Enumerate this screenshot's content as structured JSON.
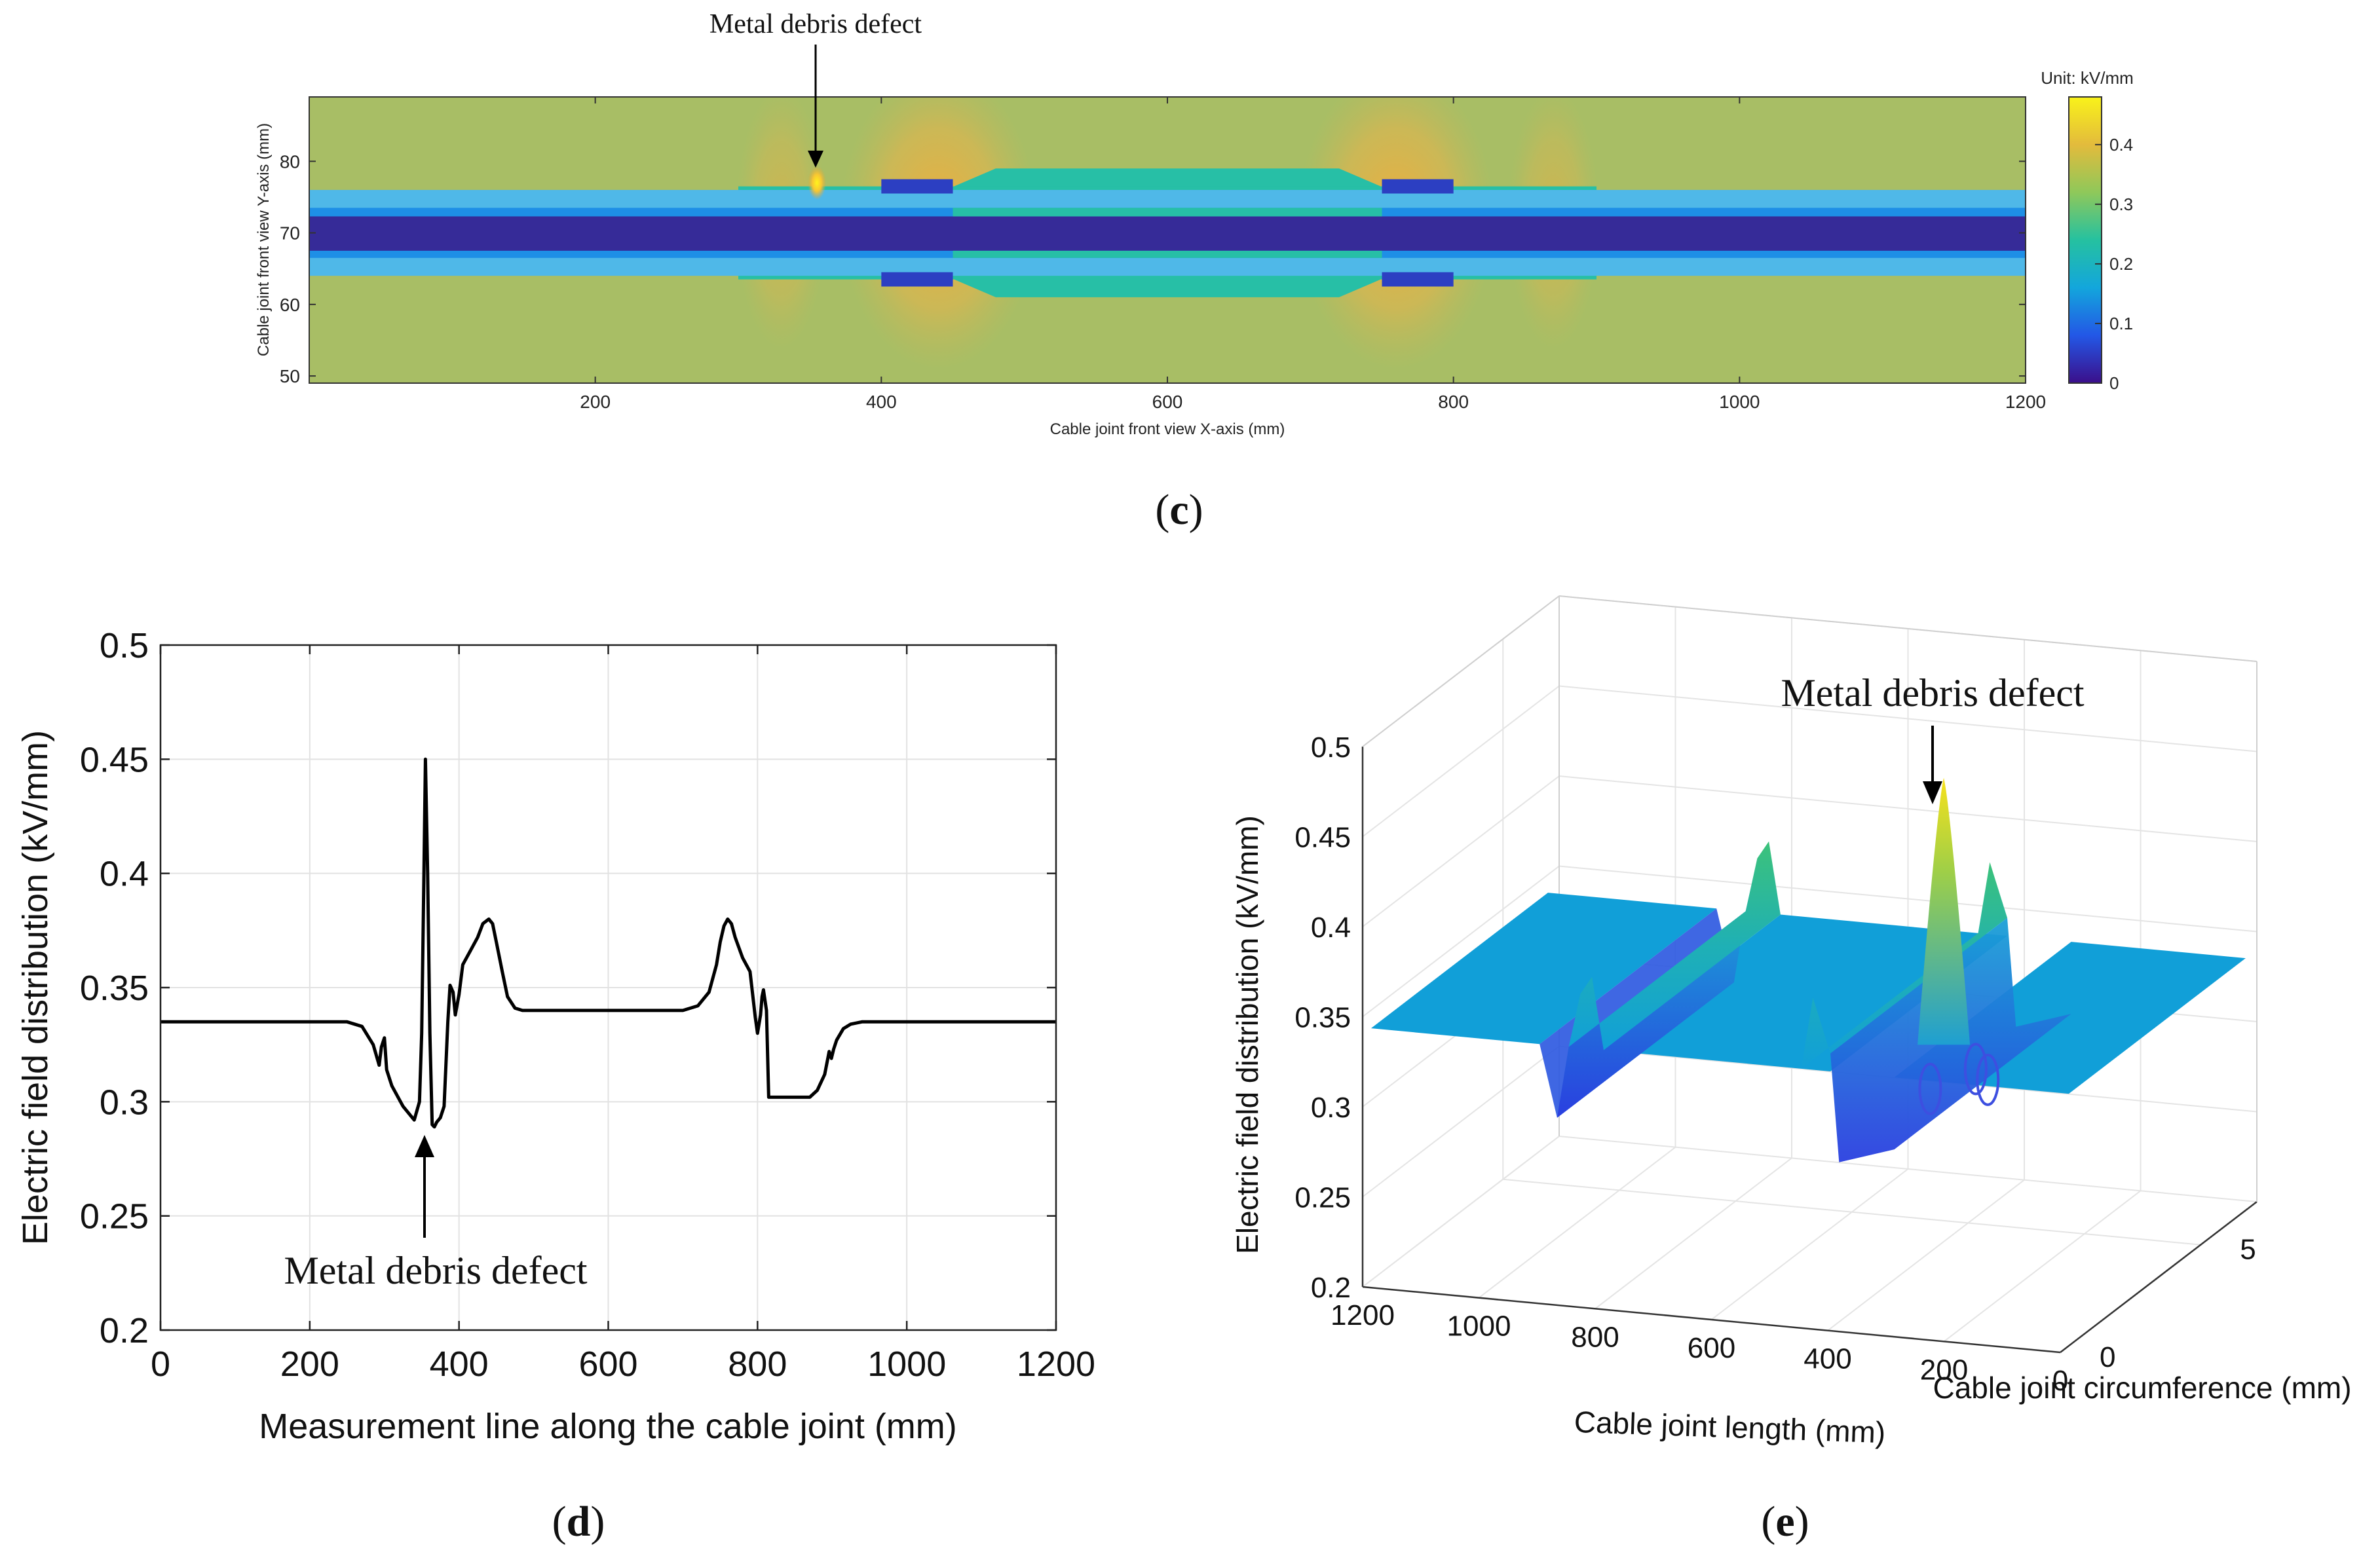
{
  "chart_data": [
    {
      "id": "c",
      "type": "heatmap",
      "panel_label": "c",
      "annotation": "Metal debris defect",
      "xlabel": "Cable joint front view X-axis (mm)",
      "ylabel": "Cable joint front view Y-axis (mm)",
      "xlim": [
        0,
        1200
      ],
      "ylim": [
        49,
        89
      ],
      "xticks": [
        200,
        400,
        600,
        800,
        1000,
        1200
      ],
      "yticks": [
        50,
        60,
        70,
        80
      ],
      "defect": {
        "x": 355,
        "y": 77
      },
      "colorbar": {
        "title": "Unit: kV/mm",
        "range": [
          0,
          0.48
        ],
        "ticks": [
          0,
          0.1,
          0.2,
          0.3,
          0.4
        ],
        "stops": [
          "#3b0f8a",
          "#2357e6",
          "#13a6dc",
          "#25c1a0",
          "#8fc85a",
          "#e3bb3c",
          "#f9f21a"
        ]
      },
      "regions_colors": {
        "background": "#a8be65",
        "conductor": "#362b98",
        "inner_band": "#1e8fe6",
        "inner_band_edge": "#4fb8e8",
        "sleeve": "#27bfa6",
        "electrode": "#2c3fc2",
        "hot": "#e9b645"
      }
    },
    {
      "id": "d",
      "type": "line",
      "panel_label": "d",
      "annotation": "Metal debris defect",
      "xlabel": "Measurement line along the cable joint (mm)",
      "ylabel": "Electric field distribution (kV/mm)",
      "xlim": [
        0,
        1200
      ],
      "ylim": [
        0.2,
        0.5
      ],
      "xticks": [
        0,
        200,
        400,
        600,
        800,
        1000,
        1200
      ],
      "yticks": [
        0.2,
        0.25,
        0.3,
        0.35,
        0.4,
        0.45,
        0.5
      ],
      "grid": true,
      "defect_x": 355,
      "series": [
        {
          "x": [
            0,
            250,
            270,
            285,
            293,
            296,
            300,
            303,
            310,
            325,
            340,
            347,
            350,
            353,
            355,
            358,
            361,
            364,
            367,
            370,
            375,
            380,
            385,
            388,
            392,
            395,
            400,
            405,
            415,
            425,
            432,
            440,
            445,
            450,
            458,
            465,
            475,
            485,
            500,
            600,
            700,
            720,
            735,
            745,
            750,
            755,
            760,
            765,
            770,
            780,
            790,
            797,
            800,
            804,
            806,
            808,
            812,
            815,
            816,
            817,
            820,
            870,
            880,
            890,
            896,
            899,
            902,
            906,
            915,
            925,
            940,
            960,
            1000,
            1200
          ],
          "y": [
            0.335,
            0.335,
            0.333,
            0.325,
            0.316,
            0.324,
            0.328,
            0.314,
            0.307,
            0.298,
            0.292,
            0.3,
            0.33,
            0.4,
            0.45,
            0.4,
            0.33,
            0.29,
            0.289,
            0.291,
            0.293,
            0.298,
            0.335,
            0.351,
            0.348,
            0.338,
            0.347,
            0.36,
            0.366,
            0.372,
            0.378,
            0.38,
            0.378,
            0.37,
            0.357,
            0.346,
            0.341,
            0.34,
            0.34,
            0.34,
            0.34,
            0.342,
            0.348,
            0.36,
            0.37,
            0.377,
            0.38,
            0.378,
            0.372,
            0.363,
            0.357,
            0.337,
            0.33,
            0.338,
            0.346,
            0.349,
            0.34,
            0.302,
            0.302,
            0.302,
            0.302,
            0.302,
            0.305,
            0.312,
            0.322,
            0.319,
            0.323,
            0.327,
            0.332,
            0.334,
            0.335,
            0.335,
            0.335,
            0.335
          ],
          "color": "#000000"
        }
      ]
    },
    {
      "id": "e",
      "type": "surface",
      "panel_label": "e",
      "annotation": "Metal debris defect",
      "xlabel": "Cable joint length (mm)",
      "ylabel": "Cable joint circumference (mm)",
      "zlabel": "Electric field distribution (kV/mm)",
      "xlim": [
        0,
        1200
      ],
      "ylim": [
        0,
        7
      ],
      "zlim": [
        0.2,
        0.5
      ],
      "xticks": [
        0,
        200,
        400,
        600,
        800,
        1000,
        1200
      ],
      "yticks": [
        0,
        5
      ],
      "zticks": [
        0.2,
        0.25,
        0.3,
        0.35,
        0.4,
        0.45,
        0.5
      ],
      "peak": {
        "x": 355,
        "z": 0.47
      },
      "colors": {
        "flat": "#119fd8",
        "ridge_top": "#2fc08a",
        "deep": "#2a56e0",
        "peak": "#f5d028"
      }
    }
  ]
}
